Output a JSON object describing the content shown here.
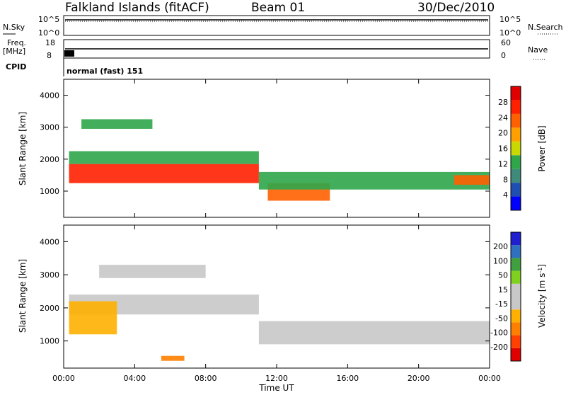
{
  "header": {
    "station": "Falkland Islands (fitACF)",
    "beam": "Beam 01",
    "date": "30/Dec/2010"
  },
  "strip": {
    "nsky_label": "N.Sky",
    "nsky_ticks": [
      "10^5",
      "10^0"
    ],
    "nsearch_label": "N.Search",
    "nsearch_ticks": [
      "10^5",
      "10^0"
    ],
    "freq_label": "Freq.",
    "freq_unit": "[MHz]",
    "freq_ticks": [
      "18",
      "8"
    ],
    "nave_label": "Nave",
    "nave_ticks": [
      "60",
      "0"
    ],
    "cpid_label": "CPID",
    "cpid_value": "normal (fast) 151"
  },
  "colors": {
    "power_scale": [
      "#0000ff",
      "#1f4fb0",
      "#3f8a7a",
      "#2fa64a",
      "#c8d800",
      "#ffa000",
      "#ff6000",
      "#ff2000",
      "#e00000"
    ],
    "velocity_scale": [
      "#2020d0",
      "#3070c0",
      "#40a040",
      "#80d020",
      "#c8c8c8",
      "#c8c8c8",
      "#ffb000",
      "#ff8000",
      "#ff4000",
      "#e00000"
    ]
  },
  "chart_data": [
    {
      "type": "heatmap",
      "quantity": "power",
      "ylabel": "Slant Range [km]",
      "ylim": [
        180,
        4500
      ],
      "yticks": [
        "1000",
        "2000",
        "3000",
        "4000"
      ],
      "colorbar_label": "Power [dB]",
      "colorbar_ticks": [
        "4",
        "8",
        "12",
        "16",
        "20",
        "24",
        "28"
      ],
      "bands": [
        {
          "t": [
            0.3,
            11
          ],
          "r": [
            1250,
            1850
          ],
          "level": 7
        },
        {
          "t": [
            0.3,
            11
          ],
          "r": [
            1850,
            2250
          ],
          "level": 3
        },
        {
          "t": [
            1,
            5
          ],
          "r": [
            2950,
            3250
          ],
          "level": 3
        },
        {
          "t": [
            11.5,
            15
          ],
          "r": [
            700,
            1250
          ],
          "level": 6
        },
        {
          "t": [
            11,
            24
          ],
          "r": [
            1050,
            1600
          ],
          "level": 3
        },
        {
          "t": [
            22,
            24
          ],
          "r": [
            1200,
            1500
          ],
          "level": 6
        }
      ]
    },
    {
      "type": "heatmap",
      "quantity": "velocity",
      "ylabel": "Slant Range [km]",
      "ylim": [
        180,
        4500
      ],
      "yticks": [
        "1000",
        "2000",
        "3000",
        "4000"
      ],
      "colorbar_label": "Velocity [m s^-1]",
      "colorbar_ticks": [
        "200",
        "100",
        "50",
        "15",
        "-15",
        "-50",
        "-100",
        "-200"
      ],
      "bands": [
        {
          "t": [
            0.3,
            11
          ],
          "r": [
            1800,
            2400
          ],
          "level": 4
        },
        {
          "t": [
            0.3,
            3
          ],
          "r": [
            1200,
            2200
          ],
          "level": 6
        },
        {
          "t": [
            2,
            8
          ],
          "r": [
            2900,
            3300
          ],
          "level": 4
        },
        {
          "t": [
            11,
            24
          ],
          "r": [
            900,
            1600
          ],
          "level": 4
        },
        {
          "t": [
            5.5,
            6.8
          ],
          "r": [
            400,
            550
          ],
          "level": 7
        }
      ]
    }
  ],
  "xaxis": {
    "title": "Time UT",
    "ticks": [
      "00:00",
      "04:00",
      "08:00",
      "12:00",
      "16:00",
      "20:00",
      "00:00"
    ]
  }
}
